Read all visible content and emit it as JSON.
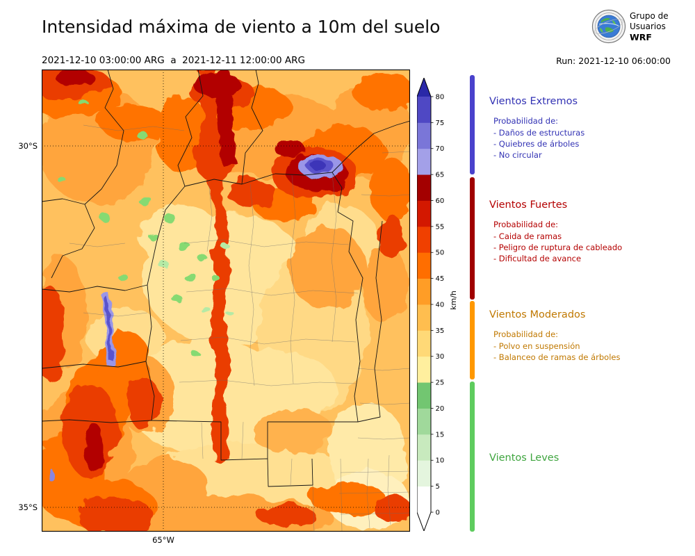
{
  "header": {
    "title": "Intensidad máxima de viento a 10m del suelo",
    "period": "2021-12-10 03:00:00 ARG  a  2021-12-11 12:00:00 ARG",
    "run_label": "Run: 2021-12-10 06:00:00",
    "logo_line1": "Grupo de",
    "logo_line2": "Usuarios",
    "logo_line3": "WRF",
    "logo_icon": "wrf-globe-logo"
  },
  "map": {
    "lat_labels": [
      "30°S",
      "35°S"
    ],
    "lon_label": "65°W"
  },
  "colorbar": {
    "unit_label": "km/h",
    "tick_values": [
      "0",
      "5",
      "10",
      "15",
      "20",
      "25",
      "30",
      "35",
      "40",
      "45",
      "50",
      "55",
      "60",
      "65",
      "70",
      "75",
      "80"
    ],
    "segment_colors": [
      "#ffffff",
      "#e4f5de",
      "#c8eabe",
      "#a0d99b",
      "#72c671",
      "#ffef9e",
      "#ffd977",
      "#ffbe4f",
      "#ff9d26",
      "#ff6e00",
      "#f04000",
      "#d31800",
      "#a30000",
      "#a3a0e8",
      "#7a76d8",
      "#4f48c4"
    ],
    "over_arrow_color": "#2a28a8",
    "under_arrow_color": "#ffffff"
  },
  "categories": [
    {
      "name": "Vientos Extremos",
      "text_color": "#3232b4",
      "bar_color": "#4a42cc",
      "prob_title": "Probabilidad de:",
      "items": [
        "- Daños de estructuras",
        "- Quiebres de árboles",
        "- No circular"
      ]
    },
    {
      "name": "Vientos Fuertes",
      "text_color": "#b40000",
      "bar_color": "#a00000",
      "prob_title": "Probabilidad de:",
      "items": [
        "- Caida de ramas",
        "- Peligro de ruptura de cableado",
        "- Dificultad de avance"
      ]
    },
    {
      "name": "Vientos Moderados",
      "text_color": "#c07800",
      "bar_color": "#ff9800",
      "prob_title": "Probabilidad de:",
      "items": [
        "- Polvo en suspensión",
        "- Balanceo de ramas de árboles"
      ]
    },
    {
      "name": "Vientos Leves",
      "text_color": "#3fa53f",
      "bar_color": "#5ecc5e",
      "prob_title": "",
      "items": []
    }
  ]
}
